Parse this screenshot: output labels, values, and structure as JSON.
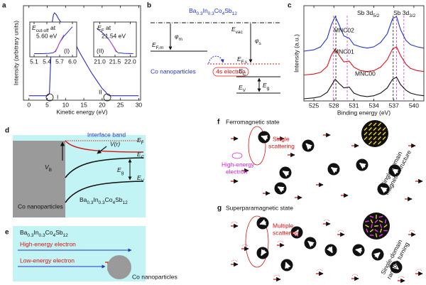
{
  "chart_data": [
    {
      "type": "line",
      "label": "a",
      "x_label": "Kinetic energy (eV)",
      "y_label": "Intensity (arbitrary units)",
      "xlim": [
        -1.5,
        30.5
      ],
      "xticks": [
        0,
        5,
        10,
        15,
        20,
        25,
        30
      ],
      "ylim": [
        -0.05,
        1
      ],
      "x": [
        0,
        5,
        5.6,
        6,
        6.3,
        6.7,
        7,
        7.5,
        8,
        9,
        10,
        11,
        12,
        13,
        14,
        15,
        16,
        17,
        18,
        19,
        20,
        21,
        21.5,
        22,
        25,
        30
      ],
      "series": [
        {
          "color": "#2b2bc0",
          "values": [
            0,
            0,
            0.02,
            0.45,
            0.8,
            0.9,
            0.92,
            0.9,
            0.86,
            0.8,
            0.74,
            0.68,
            0.6,
            0.55,
            0.47,
            0.4,
            0.33,
            0.26,
            0.2,
            0.14,
            0.08,
            0.04,
            0.01,
            0,
            0,
            0
          ]
        }
      ],
      "markers": [
        "I",
        "II"
      ]
    },
    {
      "type": "line",
      "label": "(I)",
      "annotation": {
        "text": "E",
        "sub": "cut-off",
        "after": " at",
        "line2": "5.60 eV"
      },
      "xlim": [
        5.0,
        6.1
      ],
      "xticks": [
        5.1,
        5.4,
        5.7,
        {
          "value": 6,
          "label": "6.0"
        }
      ],
      "ylim": [
        -0.1,
        1
      ],
      "x": [
        5.1,
        5.3,
        5.45,
        5.55,
        5.6,
        5.65,
        5.7,
        5.8,
        5.9,
        6.0
      ],
      "series": [
        {
          "color": "#2b2bc0",
          "values": [
            0,
            0,
            0.01,
            0.03,
            0.08,
            0.2,
            0.35,
            0.55,
            0.7,
            0.85
          ]
        },
        {
          "color": "#c040c0",
          "values": [
            null,
            null,
            null,
            null,
            0.05,
            0.2,
            0.35,
            0.6,
            null,
            null
          ]
        }
      ]
    },
    {
      "type": "line",
      "label": "(II)",
      "annotation": {
        "text": "E",
        "sub": "F",
        "after": " at",
        "line2": "21.54 eV"
      },
      "xlim": [
        20.8,
        22.2
      ],
      "xticks": [
        {
          "value": 21,
          "label": "21.0"
        },
        21.5,
        {
          "value": 22,
          "label": "22.0"
        }
      ],
      "ylim": [
        -0.1,
        1
      ],
      "x": [
        20.9,
        21.1,
        21.3,
        21.45,
        21.54,
        21.6,
        21.8,
        22.1
      ],
      "series": [
        {
          "color": "#2b2bc0",
          "values": [
            0.8,
            0.65,
            0.45,
            0.22,
            0.08,
            0.03,
            0.01,
            0
          ]
        },
        {
          "color": "#c040c0",
          "values": [
            null,
            null,
            0.45,
            0.22,
            0.05,
            null,
            null,
            null
          ]
        }
      ]
    },
    {
      "type": "line",
      "label": "c",
      "x_label": "Binding energy (eV)",
      "y_label": "Intensity (a.u.)",
      "xlim": [
        523.5,
        541.5
      ],
      "xticks": [
        525,
        528,
        531,
        534,
        537,
        540
      ],
      "ylim": [
        0,
        2.2
      ],
      "x": [
        523.5,
        525,
        526,
        527,
        527.6,
        528.2,
        528.8,
        529.5,
        530.3,
        531,
        532,
        533,
        534,
        535,
        536,
        536.8,
        537.4,
        538,
        538.8,
        539.5,
        540.5,
        541.5
      ],
      "series": [
        {
          "name": "MNC02",
          "color": "#2233cc",
          "values": [
            1.15,
            1.18,
            1.25,
            1.45,
            1.75,
            1.95,
            1.75,
            1.5,
            1.45,
            1.3,
            1.25,
            1.22,
            1.25,
            1.35,
            1.55,
            1.9,
            1.95,
            1.65,
            1.4,
            1.3,
            1.25,
            1.22
          ]
        },
        {
          "name": "MNC01",
          "color": "#dd1111",
          "values": [
            0.6,
            0.62,
            0.66,
            0.8,
            1.05,
            1.2,
            1.05,
            0.9,
            0.92,
            0.78,
            0.7,
            0.68,
            0.7,
            0.78,
            0.95,
            1.2,
            1.25,
            1.05,
            0.85,
            0.75,
            0.7,
            0.68
          ]
        },
        {
          "name": "MNC00",
          "color": "#111111",
          "values": [
            0.05,
            0.07,
            0.1,
            0.2,
            0.35,
            0.5,
            0.4,
            0.3,
            0.32,
            0.18,
            0.12,
            0.1,
            0.12,
            0.18,
            0.3,
            0.5,
            0.55,
            0.38,
            0.25,
            0.18,
            0.14,
            0.12
          ]
        }
      ],
      "reference_lines": [
        {
          "value": 527.9,
          "color": "#d040d0"
        },
        {
          "value": 528.3,
          "color": "#111111"
        },
        {
          "value": 530,
          "color": "#d040d0"
        },
        {
          "value": 536.9,
          "color": "#111111"
        },
        {
          "value": 537.4,
          "color": "#d040d0"
        },
        {
          "value": 538.5,
          "color": "#d040d0"
        }
      ],
      "annotations": [
        {
          "text": "Sb 3d",
          "sub": "5/2"
        },
        {
          "text": "Sb 3d",
          "sub": "3/2"
        }
      ]
    }
  ],
  "panels": {
    "b": {
      "label": "b",
      "compound": "Ba0.3In0.3Co4Sb12",
      "e_vac": {
        "text": "E",
        "sub": "vac"
      },
      "phi_m": {
        "text": "φ",
        "sub": "m"
      },
      "phi_s": {
        "text": "φ",
        "sub": "s"
      },
      "e_fm": {
        "text": "E",
        "sub": "F,m"
      },
      "e_fs": {
        "text": "E",
        "sub": "F,s"
      },
      "electron": "4s electron",
      "metal": "Co nanoparticles",
      "e_c": {
        "text": "E",
        "sub": "C"
      },
      "e_g": {
        "text": "E",
        "sub": "g"
      },
      "e_v": {
        "text": "E",
        "sub": "V"
      }
    },
    "d": {
      "label": "d",
      "interface": "Interface band",
      "e_f": {
        "text": "E",
        "sub": "F"
      },
      "v_r": "V(r)",
      "e_c": {
        "text": "E",
        "sub": "C"
      },
      "v_b": {
        "text": "V",
        "sub": "B"
      },
      "e_g": {
        "text": "E",
        "sub": "g"
      },
      "e_v": {
        "text": "E",
        "sub": "V"
      },
      "metal": "Co nanoparticles",
      "compound": "Ba0.3In0.3Co4Sb12"
    },
    "e": {
      "label": "e",
      "compound": "Ba0.3In0.3Co4Sb12",
      "high": "High-energy electron",
      "low": "Low-energy electron",
      "metal": "Co nanoparticles"
    },
    "f": {
      "label": "f",
      "title": "Ferromagnetic state",
      "scattering": [
        "Single",
        "scattering"
      ],
      "electron": [
        "High-energy",
        "electron"
      ],
      "domain": [
        "Single-domain",
        "magnetic structure"
      ]
    },
    "g": {
      "label": "g",
      "title": "Superparamagnetic state",
      "scattering": [
        "Multiple",
        "scattering"
      ],
      "domain": [
        "Single-domain",
        "random turning"
      ]
    }
  }
}
